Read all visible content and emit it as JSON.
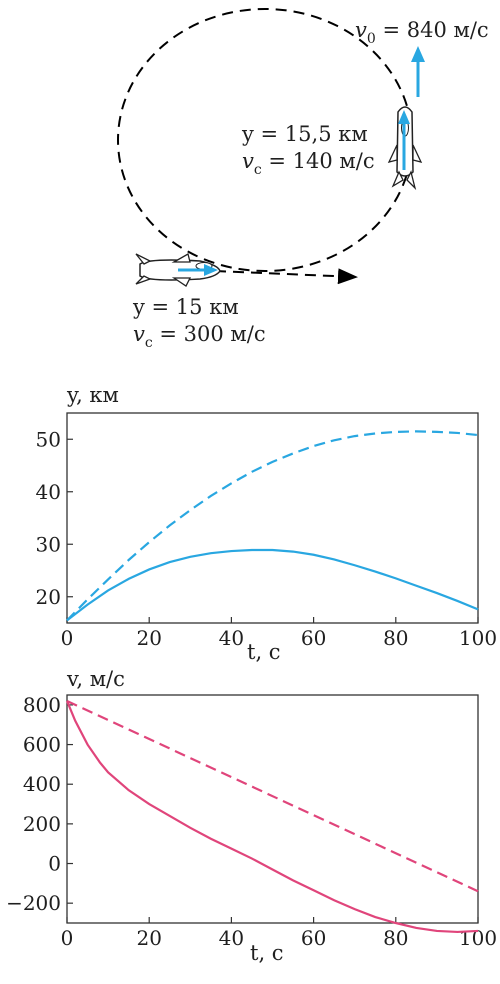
{
  "diagram": {
    "v0_label": "v",
    "v0_sub": "0",
    "v0_value": " = 840 м/с",
    "top_y": "y = 15,5 км",
    "top_v": "v",
    "top_v_sub": "c",
    "top_v_value": " = 140 м/с",
    "bottom_y": "y = 15 км",
    "bottom_v": "v",
    "bottom_v_sub": "c",
    "bottom_v_value": " = 300 м/с",
    "colors": {
      "arrow": "#29a7e1",
      "trajectory": "#000000"
    }
  },
  "chart_data": [
    {
      "type": "line",
      "ylabel": "y,  км",
      "xlabel": "t,  с",
      "xlim": [
        0,
        100
      ],
      "ylim": [
        15,
        55
      ],
      "xticks": [
        0,
        20,
        40,
        60,
        80,
        100
      ],
      "yticks": [
        20,
        30,
        40,
        50
      ],
      "color": "#29a7e1",
      "series": [
        {
          "style": "solid",
          "x": [
            0,
            5,
            10,
            15,
            20,
            25,
            30,
            35,
            40,
            45,
            50,
            55,
            60,
            65,
            70,
            75,
            80,
            85,
            90,
            95,
            100
          ],
          "y": [
            15.5,
            18.5,
            21.2,
            23.4,
            25.2,
            26.6,
            27.6,
            28.3,
            28.7,
            28.9,
            28.9,
            28.6,
            28.0,
            27.1,
            26.0,
            24.8,
            23.5,
            22.1,
            20.7,
            19.2,
            17.6
          ]
        },
        {
          "style": "dashed",
          "x": [
            0,
            5,
            10,
            15,
            20,
            25,
            30,
            35,
            40,
            45,
            50,
            55,
            60,
            65,
            70,
            75,
            80,
            85,
            90,
            95,
            100
          ],
          "y": [
            15.5,
            19.5,
            23.3,
            27.0,
            30.4,
            33.6,
            36.5,
            39.2,
            41.6,
            43.8,
            45.7,
            47.3,
            48.7,
            49.8,
            50.6,
            51.1,
            51.4,
            51.5,
            51.4,
            51.2,
            50.8
          ]
        }
      ]
    },
    {
      "type": "line",
      "ylabel": "v,  м/с",
      "xlabel": "t,  с",
      "xlim": [
        0,
        100
      ],
      "ylim": [
        -300,
        850
      ],
      "xticks": [
        0,
        20,
        40,
        60,
        80,
        100
      ],
      "yticks": [
        -200,
        0,
        200,
        400,
        600,
        800
      ],
      "ytick_labels": [
        "−200",
        "0",
        "200",
        "400",
        "600",
        "800"
      ],
      "color": "#e0457b",
      "series": [
        {
          "style": "solid",
          "x": [
            0,
            2,
            5,
            8,
            10,
            15,
            20,
            25,
            30,
            35,
            40,
            45,
            50,
            55,
            60,
            65,
            70,
            75,
            80,
            85,
            90,
            95,
            100
          ],
          "y": [
            820,
            720,
            600,
            510,
            460,
            370,
            300,
            240,
            180,
            125,
            75,
            25,
            -30,
            -85,
            -135,
            -185,
            -230,
            -270,
            -300,
            -325,
            -340,
            -345,
            -340
          ]
        },
        {
          "style": "dashed",
          "x": [
            0,
            100
          ],
          "y": [
            820,
            -140
          ]
        }
      ]
    }
  ]
}
